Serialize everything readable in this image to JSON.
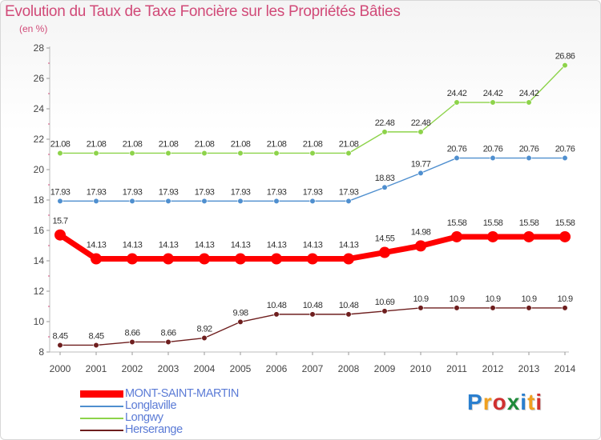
{
  "title": "Evolution du Taux de Taxe Foncière sur les Propriétés Bâties",
  "subtitle": "(en %)",
  "logo": {
    "letters": [
      "P",
      "r",
      "o",
      "x",
      "i",
      "t",
      "i"
    ],
    "colors": [
      "#2a7fcf",
      "#f0a020",
      "#d03030",
      "#1e8a3a",
      "#2a7fcf",
      "#f0a020",
      "#d03030"
    ]
  },
  "chart_data": {
    "type": "line",
    "x": [
      "2000",
      "2001",
      "2002",
      "2003",
      "2004",
      "2005",
      "2006",
      "2007",
      "2008",
      "2009",
      "2010",
      "2011",
      "2012",
      "2013",
      "2014"
    ],
    "y_ticks": [
      "8",
      "10",
      "12",
      "14",
      "16",
      "18",
      "20",
      "22",
      "24",
      "26",
      "28"
    ],
    "ylim": [
      8,
      28
    ],
    "grid": false,
    "legend_position": "bottom-left",
    "series": [
      {
        "name": "MONT-SAINT-MARTIN",
        "color": "#ff0000",
        "emphasis": true,
        "values": [
          15.7,
          14.13,
          14.13,
          14.13,
          14.13,
          14.13,
          14.13,
          14.13,
          14.13,
          14.55,
          14.98,
          15.58,
          15.58,
          15.58,
          15.58
        ],
        "labels": [
          "15.7",
          "14.13",
          "14.13",
          "14.13",
          "14.13",
          "14.13",
          "14.13",
          "14.13",
          "14.13",
          "14.55",
          "14.98",
          "15.58",
          "15.58",
          "15.58",
          "15.58"
        ]
      },
      {
        "name": "Longlaville",
        "color": "#4f8fcf",
        "values": [
          17.93,
          17.93,
          17.93,
          17.93,
          17.93,
          17.93,
          17.93,
          17.93,
          17.93,
          18.83,
          19.77,
          20.76,
          20.76,
          20.76,
          20.76
        ],
        "labels": [
          "17.93",
          "17.93",
          "17.93",
          "17.93",
          "17.93",
          "17.93",
          "17.93",
          "17.93",
          "17.93",
          "18.83",
          "19.77",
          "20.76",
          "20.76",
          "20.76",
          "20.76"
        ]
      },
      {
        "name": "Longwy",
        "color": "#8dd34a",
        "values": [
          21.08,
          21.08,
          21.08,
          21.08,
          21.08,
          21.08,
          21.08,
          21.08,
          21.08,
          22.48,
          22.48,
          24.42,
          24.42,
          24.42,
          26.86
        ],
        "labels": [
          "21.08",
          "21.08",
          "21.08",
          "21.08",
          "21.08",
          "21.08",
          "21.08",
          "21.08",
          "21.08",
          "22.48",
          "22.48",
          "24.42",
          "24.42",
          "24.42",
          "26.86"
        ]
      },
      {
        "name": "Herserange",
        "color": "#6e1e1e",
        "values": [
          8.45,
          8.45,
          8.66,
          8.66,
          8.92,
          9.98,
          10.48,
          10.48,
          10.48,
          10.69,
          10.9,
          10.9,
          10.9,
          10.9,
          10.9
        ],
        "labels": [
          "8.45",
          "8.45",
          "8.66",
          "8.66",
          "8.92",
          "9.98",
          "10.48",
          "10.48",
          "10.48",
          "10.69",
          "10.9",
          "10.9",
          "10.9",
          "10.9",
          "10.9"
        ]
      }
    ]
  }
}
